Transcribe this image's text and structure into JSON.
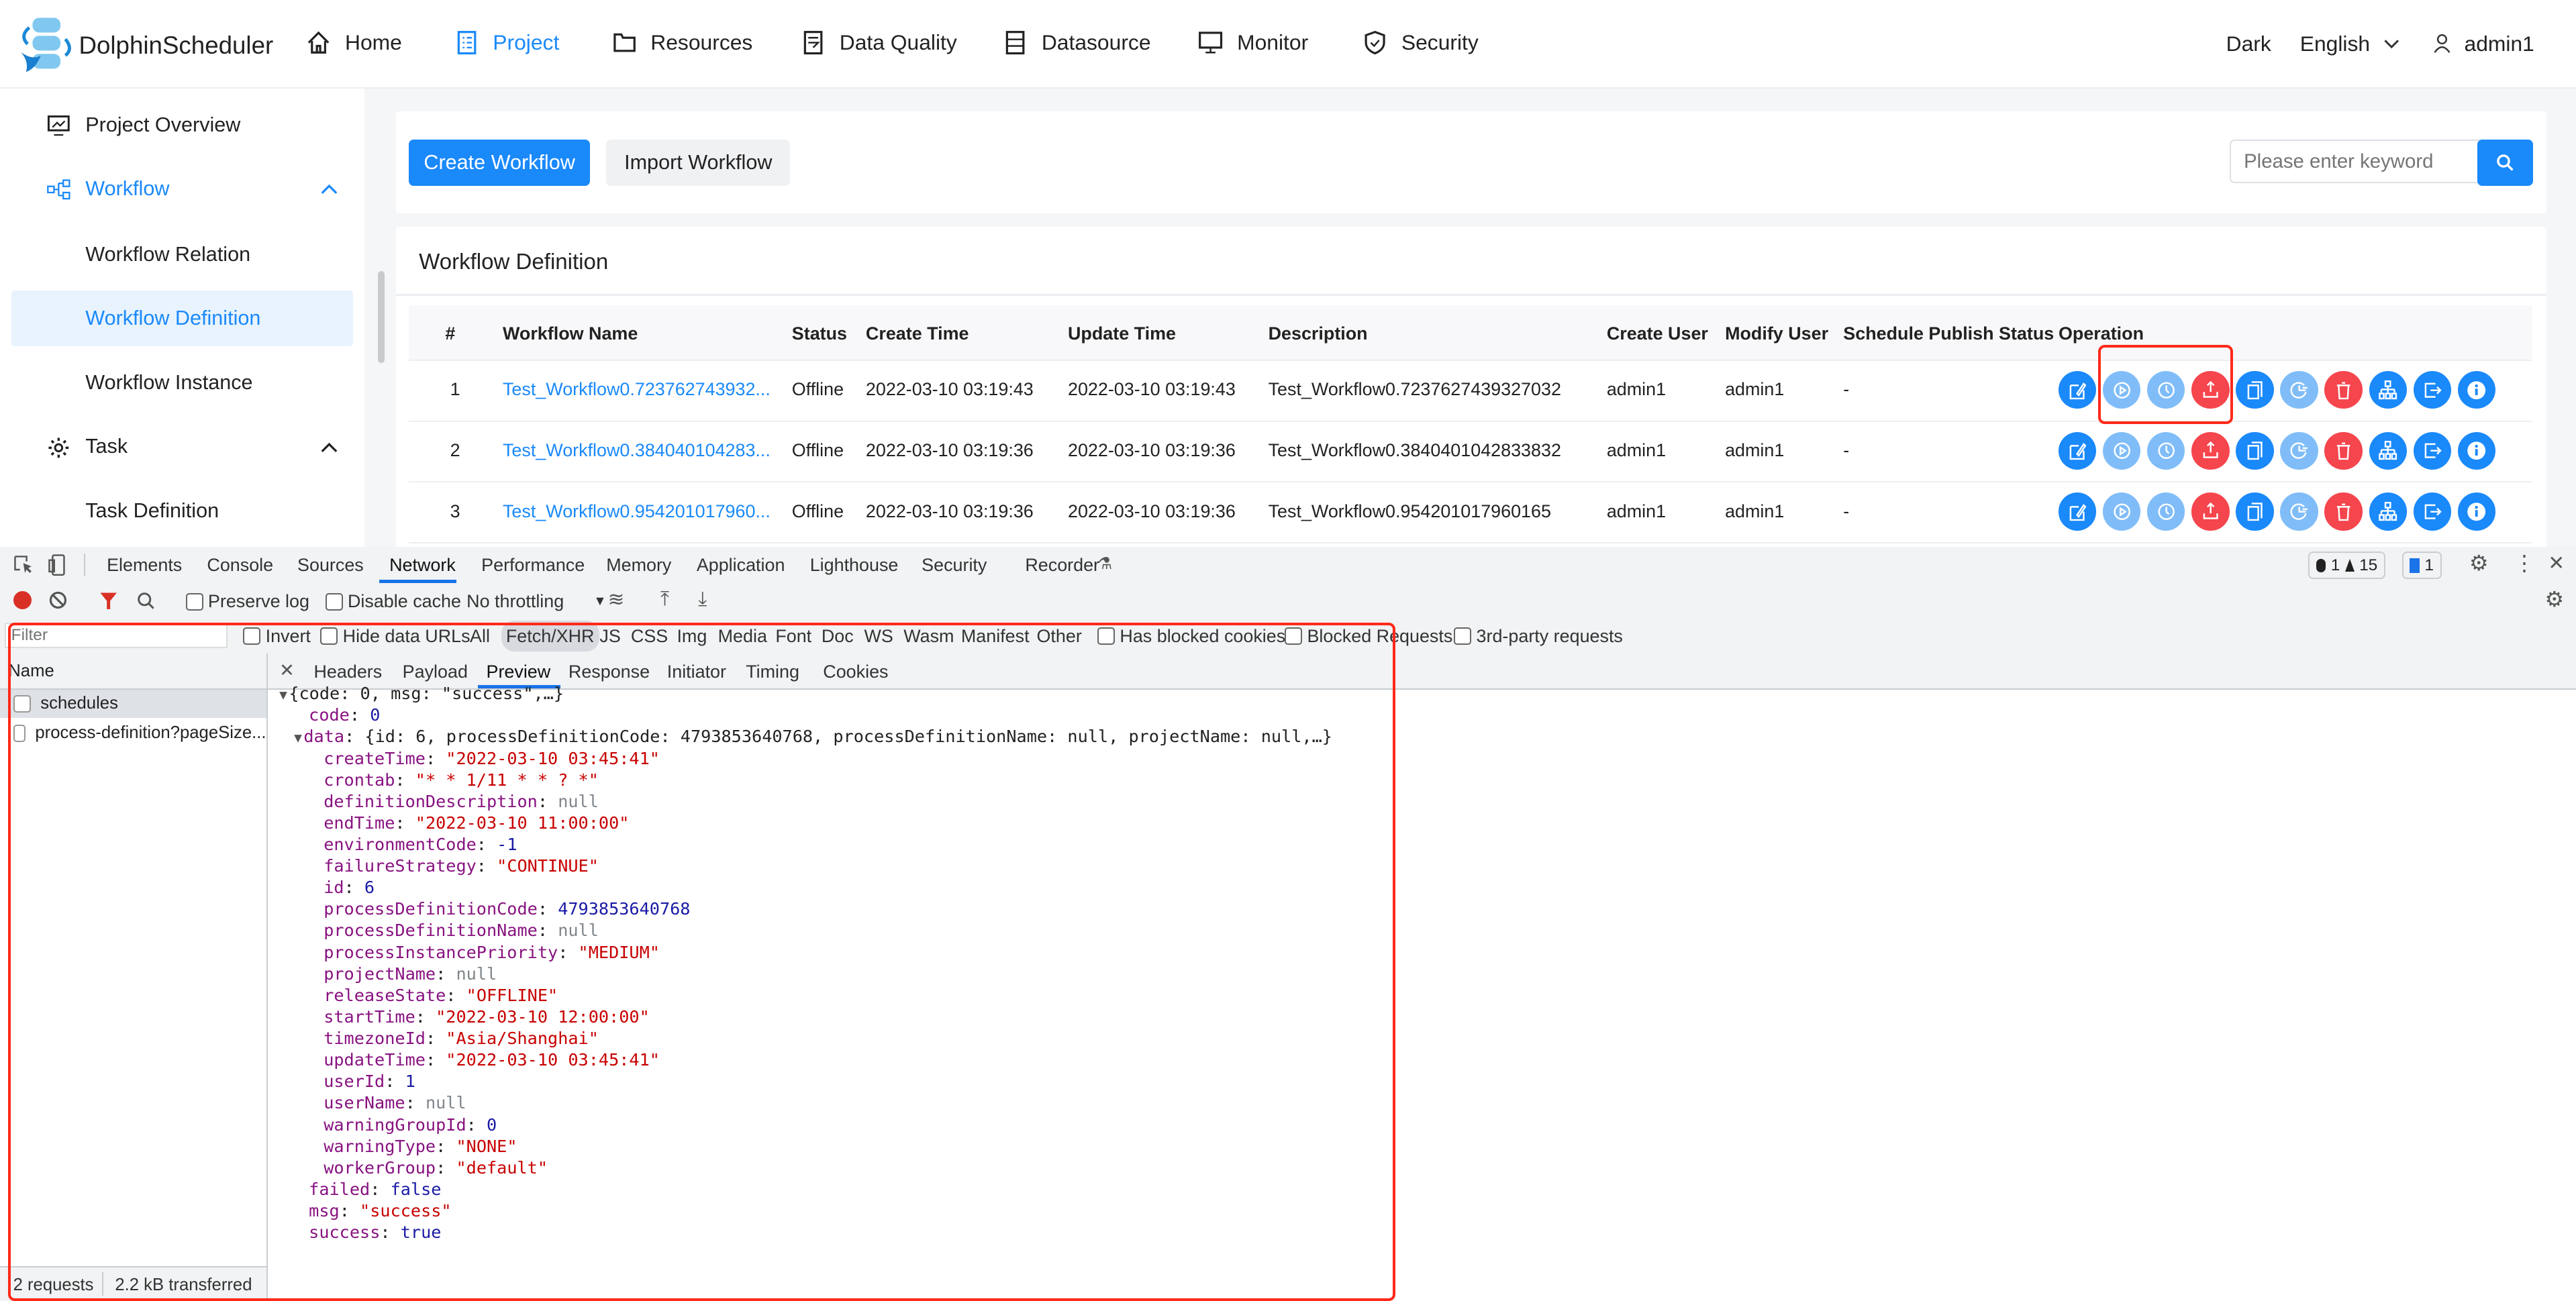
{
  "app": {
    "name": "DolphinScheduler",
    "accent": "#1a89fa"
  },
  "header": {
    "nav": [
      {
        "label": "Home",
        "icon": "home-icon"
      },
      {
        "label": "Project",
        "icon": "project-icon",
        "active": true
      },
      {
        "label": "Resources",
        "icon": "folder-icon"
      },
      {
        "label": "Data Quality",
        "icon": "data-quality-icon"
      },
      {
        "label": "Datasource",
        "icon": "datasource-icon"
      },
      {
        "label": "Monitor",
        "icon": "monitor-icon"
      },
      {
        "label": "Security",
        "icon": "shield-icon"
      }
    ],
    "theme": "Dark",
    "language": "English",
    "user": "admin1"
  },
  "sidebar": {
    "items": [
      {
        "label": "Project Overview",
        "icon": "overview-icon"
      },
      {
        "label": "Workflow",
        "icon": "workflow-icon",
        "expanded": true
      },
      {
        "label": "Workflow Relation"
      },
      {
        "label": "Workflow Definition",
        "selected": true
      },
      {
        "label": "Workflow Instance"
      },
      {
        "label": "Task",
        "icon": "gear-icon",
        "expanded": true
      },
      {
        "label": "Task Definition"
      }
    ]
  },
  "toolbar": {
    "create": "Create Workflow",
    "import": "Import Workflow",
    "search_placeholder": "Please enter keyword"
  },
  "table": {
    "title": "Workflow Definition",
    "columns": [
      "#",
      "Workflow Name",
      "Status",
      "Create Time",
      "Update Time",
      "Description",
      "Create User",
      "Modify User",
      "Schedule Publish Status",
      "Operation"
    ],
    "rows": [
      [
        "1",
        "Test_Workflow0.723762743932...",
        "Offline",
        "2022-03-10 03:19:43",
        "2022-03-10 03:19:43",
        "Test_Workflow0.7237627439327032",
        "admin1",
        "admin1",
        "-"
      ],
      [
        "2",
        "Test_Workflow0.384040104283...",
        "Offline",
        "2022-03-10 03:19:36",
        "2022-03-10 03:19:36",
        "Test_Workflow0.3840401042833832",
        "admin1",
        "admin1",
        "-"
      ],
      [
        "3",
        "Test_Workflow0.954201017960...",
        "Offline",
        "2022-03-10 03:19:36",
        "2022-03-10 03:19:36",
        "Test_Workflow0.954201017960165",
        "admin1",
        "admin1",
        "-"
      ]
    ],
    "operations": [
      {
        "icon": "edit-icon",
        "color": "#1a89fa"
      },
      {
        "icon": "play-icon",
        "color": "#80bdf8"
      },
      {
        "icon": "clock-icon",
        "color": "#80bdf8"
      },
      {
        "icon": "upload-icon",
        "color": "#f5454d"
      },
      {
        "icon": "copy-icon",
        "color": "#1a89fa"
      },
      {
        "icon": "timer-icon",
        "color": "#80bdf8"
      },
      {
        "icon": "trash-icon",
        "color": "#f5454d"
      },
      {
        "icon": "sitemap-icon",
        "color": "#1a89fa"
      },
      {
        "icon": "export-icon",
        "color": "#1a89fa"
      },
      {
        "icon": "info-icon",
        "color": "#1a89fa"
      }
    ],
    "highlight_color": "#ff2a1a"
  },
  "devtools": {
    "tabs": [
      "Elements",
      "Console",
      "Sources",
      "Network",
      "Performance",
      "Memory",
      "Application",
      "Lighthouse",
      "Security",
      "Recorder"
    ],
    "active_tab": "Network",
    "badges": {
      "errors": "1",
      "warnings": "15",
      "messages": "1"
    },
    "network_toolbar": {
      "preserve_log": "Preserve log",
      "disable_cache": "Disable cache",
      "throttling": "No throttling"
    },
    "filter": {
      "placeholder": "Filter",
      "invert": "Invert",
      "hide_data_urls": "Hide data URLs",
      "types": [
        "All",
        "Fetch/XHR",
        "JS",
        "CSS",
        "Img",
        "Media",
        "Font",
        "Doc",
        "WS",
        "Wasm",
        "Manifest",
        "Other"
      ],
      "active_type": "Fetch/XHR",
      "has_blocked_cookies": "Has blocked cookies",
      "blocked_requests": "Blocked Requests",
      "third_party": "3rd-party requests"
    },
    "requests_header": "Name",
    "requests": [
      "schedules",
      "process-definition?pageSize..."
    ],
    "status": {
      "requests": "2 requests",
      "transferred": "2.2 kB transferred"
    },
    "detail_tabs": [
      "Headers",
      "Payload",
      "Preview",
      "Response",
      "Initiator",
      "Timing",
      "Cookies"
    ],
    "active_detail_tab": "Preview",
    "preview": [
      {
        "lvl": 0,
        "toggle": true,
        "summary": "{code: 0, msg: \"success\",…}"
      },
      {
        "lvl": 1,
        "key": "code",
        "value": "0",
        "type": "n"
      },
      {
        "lvl": 1,
        "toggle": true,
        "key": "data",
        "summary": "{id: 6, processDefinitionCode: 4793853640768, processDefinitionName: null, projectName: null,…}"
      },
      {
        "lvl": 2,
        "key": "createTime",
        "value": "\"2022-03-10 03:45:41\"",
        "type": "s"
      },
      {
        "lvl": 2,
        "key": "crontab",
        "value": "\"* * 1/11 * * ? *\"",
        "type": "s"
      },
      {
        "lvl": 2,
        "key": "definitionDescription",
        "value": "null",
        "type": "nl"
      },
      {
        "lvl": 2,
        "key": "endTime",
        "value": "\"2022-03-10 11:00:00\"",
        "type": "s"
      },
      {
        "lvl": 2,
        "key": "environmentCode",
        "value": "-1",
        "type": "n"
      },
      {
        "lvl": 2,
        "key": "failureStrategy",
        "value": "\"CONTINUE\"",
        "type": "s"
      },
      {
        "lvl": 2,
        "key": "id",
        "value": "6",
        "type": "n"
      },
      {
        "lvl": 2,
        "key": "processDefinitionCode",
        "value": "4793853640768",
        "type": "n"
      },
      {
        "lvl": 2,
        "key": "processDefinitionName",
        "value": "null",
        "type": "nl"
      },
      {
        "lvl": 2,
        "key": "processInstancePriority",
        "value": "\"MEDIUM\"",
        "type": "s"
      },
      {
        "lvl": 2,
        "key": "projectName",
        "value": "null",
        "type": "nl"
      },
      {
        "lvl": 2,
        "key": "releaseState",
        "value": "\"OFFLINE\"",
        "type": "s"
      },
      {
        "lvl": 2,
        "key": "startTime",
        "value": "\"2022-03-10 12:00:00\"",
        "type": "s"
      },
      {
        "lvl": 2,
        "key": "timezoneId",
        "value": "\"Asia/Shanghai\"",
        "type": "s"
      },
      {
        "lvl": 2,
        "key": "updateTime",
        "value": "\"2022-03-10 03:45:41\"",
        "type": "s"
      },
      {
        "lvl": 2,
        "key": "userId",
        "value": "1",
        "type": "n"
      },
      {
        "lvl": 2,
        "key": "userName",
        "value": "null",
        "type": "nl"
      },
      {
        "lvl": 2,
        "key": "warningGroupId",
        "value": "0",
        "type": "n"
      },
      {
        "lvl": 2,
        "key": "warningType",
        "value": "\"NONE\"",
        "type": "s"
      },
      {
        "lvl": 2,
        "key": "workerGroup",
        "value": "\"default\"",
        "type": "s"
      },
      {
        "lvl": 1,
        "key": "failed",
        "value": "false",
        "type": "n"
      },
      {
        "lvl": 1,
        "key": "msg",
        "value": "\"success\"",
        "type": "s"
      },
      {
        "lvl": 1,
        "key": "success",
        "value": "true",
        "type": "n"
      }
    ]
  }
}
